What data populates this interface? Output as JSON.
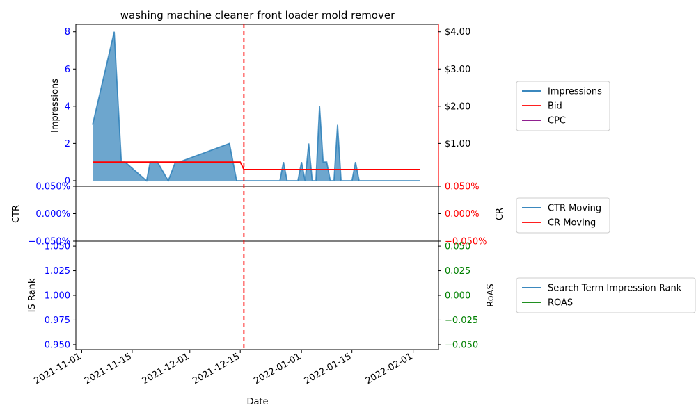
{
  "chart_data": {
    "type": "area",
    "title": "washing machine cleaner front loader mold remover",
    "xlabel": "Date",
    "x_ticks": [
      "2021-11-01",
      "2021-11-15",
      "2021-12-01",
      "2021-12-15",
      "2022-01-01",
      "2022-01-15",
      "2022-02-01"
    ],
    "event_line_date": "2021-12-16",
    "colors": {
      "impressions": "#1f77b4",
      "bid": "#ff0000",
      "cpc": "#800080",
      "ctr": "#1f77b4",
      "cr": "#ff0000",
      "is_rank": "#1f77b4",
      "roas": "#008000",
      "left_ticks": "#0000ff",
      "event_line": "#ff0000"
    },
    "panels": {
      "top": {
        "ylabel": "Impressions",
        "ylim": [
          -0.3,
          8.4
        ],
        "y_ticks": [
          "0",
          "2",
          "4",
          "6",
          "8"
        ],
        "y2lim": [
          -0.15,
          4.2
        ],
        "y2_ticks": [
          "$1.00",
          "$2.00",
          "$3.00",
          "$4.00"
        ],
        "legend": [
          "Impressions",
          "Bid",
          "CPC"
        ],
        "series": [
          {
            "name": "Impressions",
            "axis": "left",
            "kind": "area",
            "points": [
              [
                "2021-11-04",
                3
              ],
              [
                "2021-11-10",
                8
              ],
              [
                "2021-11-12",
                1
              ],
              [
                "2021-11-13",
                1
              ],
              [
                "2021-11-19",
                0
              ],
              [
                "2021-11-20",
                1
              ],
              [
                "2021-11-22",
                1
              ],
              [
                "2021-11-25",
                0
              ],
              [
                "2021-11-27",
                1
              ],
              [
                "2021-11-28",
                1
              ],
              [
                "2021-12-12",
                2
              ],
              [
                "2021-12-14",
                0
              ],
              [
                "2021-12-26",
                0
              ],
              [
                "2021-12-27",
                1
              ],
              [
                "2021-12-28",
                0
              ],
              [
                "2021-12-31",
                0
              ],
              [
                "2022-01-01",
                1
              ],
              [
                "2022-01-02",
                0
              ],
              [
                "2022-01-03",
                2
              ],
              [
                "2022-01-04",
                0
              ],
              [
                "2022-01-05",
                0
              ],
              [
                "2022-01-06",
                4
              ],
              [
                "2022-01-07",
                1
              ],
              [
                "2022-01-08",
                1
              ],
              [
                "2022-01-09",
                0
              ],
              [
                "2022-01-10",
                0
              ],
              [
                "2022-01-11",
                3
              ],
              [
                "2022-01-12",
                0
              ],
              [
                "2022-01-15",
                0
              ],
              [
                "2022-01-16",
                1
              ],
              [
                "2022-01-17",
                0
              ],
              [
                "2022-02-03",
                0
              ]
            ]
          },
          {
            "name": "Bid",
            "axis": "right",
            "kind": "line",
            "points": [
              [
                "2021-11-04",
                0.5
              ],
              [
                "2021-12-15",
                0.5
              ],
              [
                "2021-12-16",
                0.3
              ],
              [
                "2022-02-03",
                0.3
              ]
            ]
          },
          {
            "name": "CPC",
            "axis": "right",
            "kind": "line",
            "points": []
          }
        ]
      },
      "middle": {
        "ylabel": "CTR",
        "ylim": [
          -0.0005,
          0.0005
        ],
        "y_ticks": [
          "−0.050%",
          "0.000%",
          "0.050%"
        ],
        "y2label": "CR",
        "y2_ticks": [
          "−0.050%",
          "0.000%",
          "0.050%"
        ],
        "legend": [
          "CTR Moving",
          "CR Moving"
        ]
      },
      "bottom": {
        "ylabel": "IS Rank",
        "ylim": [
          0.945,
          1.055
        ],
        "y_ticks": [
          "0.950",
          "0.975",
          "1.000",
          "1.025",
          "1.050"
        ],
        "y2label": "RoAS",
        "y2lim": [
          -0.055,
          0.055
        ],
        "y2_ticks": [
          "−0.050",
          "−0.025",
          "0.000",
          "0.025",
          "0.050"
        ],
        "legend": [
          "Search Term Impression Rank",
          "ROAS"
        ]
      }
    }
  }
}
